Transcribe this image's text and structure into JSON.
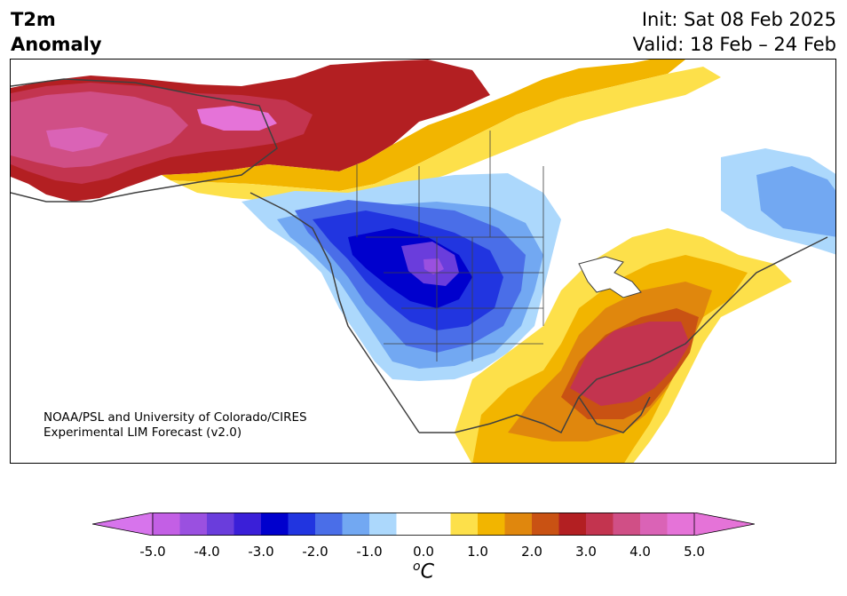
{
  "title": {
    "line1": "T2m",
    "line2": "Anomaly",
    "init": "Init: Sat 08 Feb 2025",
    "valid": "Valid: 18 Feb – 24 Feb"
  },
  "credit": {
    "line1": "NOAA/PSL and University of Colorado/CIRES",
    "line2": "Experimental LIM Forecast (v2.0)"
  },
  "colorbar": {
    "unit_symbol": "o",
    "unit_letter": "C",
    "min": -5.0,
    "max": 5.0,
    "step": 0.5,
    "ticks": [
      "-5.0",
      "-4.0",
      "-3.0",
      "-2.0",
      "-1.0",
      "0.0",
      "1.0",
      "2.0",
      "3.0",
      "4.0",
      "5.0"
    ],
    "under_color": "#d774ec",
    "over_color": "#e573d8",
    "bin_colors": [
      "#c35fe5",
      "#9a50e0",
      "#6a3ddc",
      "#3a1fd8",
      "#0000cd",
      "#2135e0",
      "#4a6ee8",
      "#72a8f2",
      "#acd8fc",
      "#ffffff",
      "#ffffff",
      "#fde04a",
      "#f2b500",
      "#e0870d",
      "#c95213",
      "#b31f22",
      "#c3344f",
      "#d04f86",
      "#da63b6",
      "#e573d8"
    ]
  },
  "legend_colors": {
    "strong_cold": "#0000cd",
    "cold": "#2135e0",
    "cool": "#72a8f2",
    "slight_cool": "#acd8fc",
    "slight_warm": "#fde04a",
    "warm": "#f2b500",
    "hot": "#c95213",
    "very_hot": "#c3344f",
    "extreme": "#e573d8",
    "coast": "#404040"
  }
}
